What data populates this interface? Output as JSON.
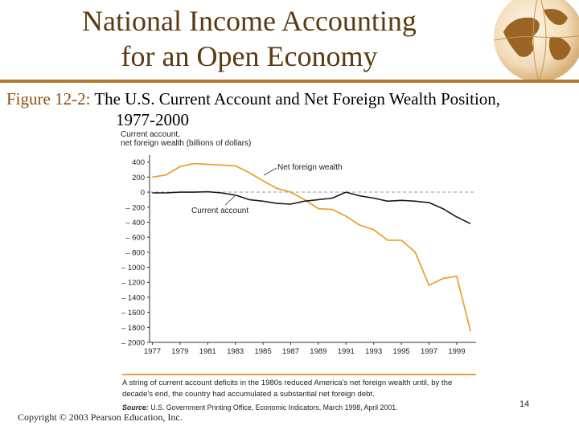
{
  "slide": {
    "title_line1": "National Income Accounting",
    "title_line2": "for an Open Economy",
    "caption_label": "Figure 12-2:",
    "caption_text": " The U.S. Current Account and Net Foreign Wealth Position,",
    "caption_line2": "1977-2000",
    "copyright": "Copyright © 2003 Pearson Education, Inc.",
    "page_number": "14",
    "accent_color": "#b17a2e"
  },
  "chart_data": {
    "type": "line",
    "ylabel_line1": "Current account,",
    "ylabel_line2": "net foreign wealth (billions of dollars)",
    "yticks": [
      "400",
      "200",
      "0",
      "– 200",
      "– 400",
      "– 600",
      "– 800",
      "– 1000",
      "– 1200",
      "– 1400",
      "– 1600",
      "– 1800",
      "– 2000"
    ],
    "ytick_values": [
      400,
      200,
      0,
      -200,
      -400,
      -600,
      -800,
      -1000,
      -1200,
      -1400,
      -1600,
      -1800,
      -2000
    ],
    "xticks": [
      "1977",
      "1979",
      "1981",
      "1983",
      "1985",
      "1987",
      "1989",
      "1991",
      "1993",
      "1995",
      "1997",
      "1999"
    ],
    "xtick_values": [
      1977,
      1979,
      1981,
      1983,
      1985,
      1987,
      1989,
      1991,
      1993,
      1995,
      1997,
      1999
    ],
    "xlim": [
      1976.8,
      2000.4
    ],
    "ylim": [
      -2000,
      450
    ],
    "zero_line": "dashed",
    "series": [
      {
        "name": "Net foreign wealth",
        "color": "#f0a030",
        "x": [
          1977,
          1978,
          1979,
          1980,
          1981,
          1982,
          1983,
          1984,
          1985,
          1986,
          1987,
          1988,
          1989,
          1990,
          1991,
          1992,
          1993,
          1994,
          1995,
          1996,
          1997,
          1998,
          1999,
          2000
        ],
        "values": [
          200,
          230,
          340,
          380,
          370,
          360,
          350,
          260,
          150,
          50,
          0,
          -100,
          -220,
          -230,
          -320,
          -440,
          -500,
          -640,
          -640,
          -800,
          -1240,
          -1150,
          -1120,
          -1850
        ]
      },
      {
        "name": "Current account",
        "color": "#1a1a1a",
        "x": [
          1977,
          1978,
          1979,
          1980,
          1981,
          1982,
          1983,
          1984,
          1985,
          1986,
          1987,
          1988,
          1989,
          1990,
          1991,
          1992,
          1993,
          1994,
          1995,
          1996,
          1997,
          1998,
          1999,
          2000
        ],
        "values": [
          -10,
          -10,
          0,
          0,
          5,
          -10,
          -40,
          -100,
          -120,
          -150,
          -160,
          -120,
          -100,
          -80,
          0,
          -50,
          -80,
          -120,
          -110,
          -120,
          -140,
          -220,
          -330,
          -420
        ]
      }
    ],
    "annotations": [
      "Net foreign wealth",
      "Current account"
    ],
    "note_line1": "A string of current account deficits in the 1980s reduced America's net foreign wealth until, by the",
    "note_line2": "decade's end, the country had accumulated a substantial net foreign debt.",
    "source_label": "Source:",
    "source_text": " U.S. Government Printing Office, Economic Indicators, March 1998, April 2001."
  }
}
